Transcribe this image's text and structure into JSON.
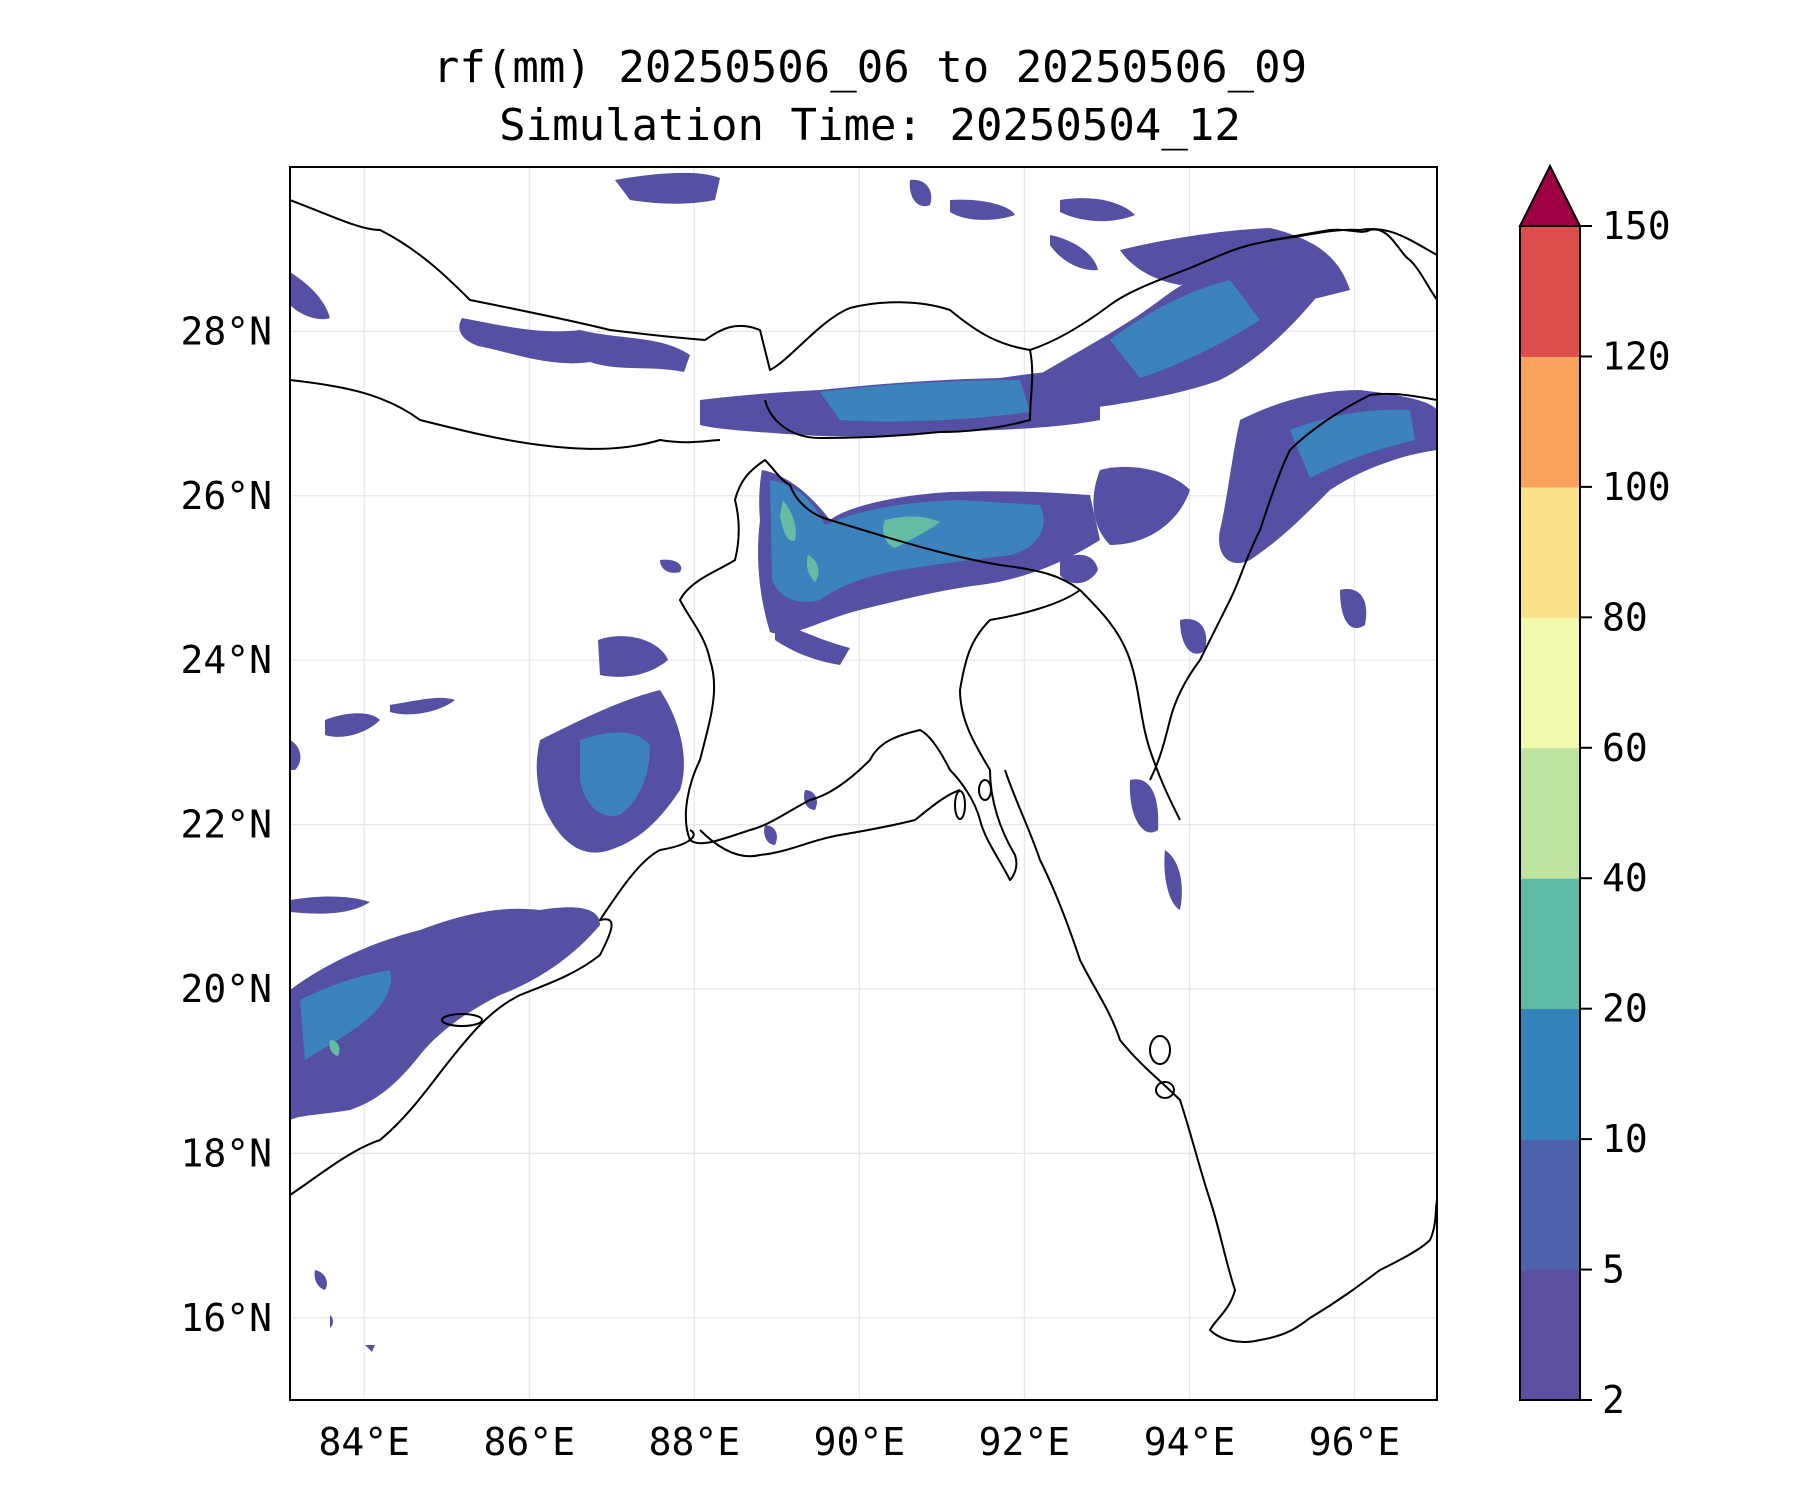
{
  "title": {
    "line1": "rf(mm) 20250506_06 to 20250506_09",
    "line2": "Simulation Time: 20250504_12"
  },
  "map": {
    "extent": {
      "lon": [
        83.1,
        97.0
      ],
      "lat": [
        15.0,
        30.0
      ]
    },
    "lat_ticks": [
      "16°N",
      "18°N",
      "20°N",
      "22°N",
      "24°N",
      "26°N",
      "28°N"
    ],
    "lon_ticks": [
      "84°E",
      "86°E",
      "88°E",
      "90°E",
      "92°E",
      "94°E",
      "96°E"
    ],
    "gridlines": true,
    "coastline_color": "#000000",
    "border_color": "#000000"
  },
  "colorbar": {
    "levels": [
      "2",
      "5",
      "10",
      "20",
      "40",
      "60",
      "80",
      "100",
      "120",
      "150"
    ],
    "colors": [
      "#5e4fa2",
      "#4f63ad",
      "#3682ba",
      "#5fbaa6",
      "#bde3a0",
      "#f3f9ad",
      "#fbe08a",
      "#fba25c",
      "#dc4d4c"
    ],
    "extend_color": "#9e0142",
    "extend": "max"
  },
  "rain_colors": {
    "low": "#5550a3",
    "mid": "#3c83bd",
    "high": "#64bca4"
  }
}
